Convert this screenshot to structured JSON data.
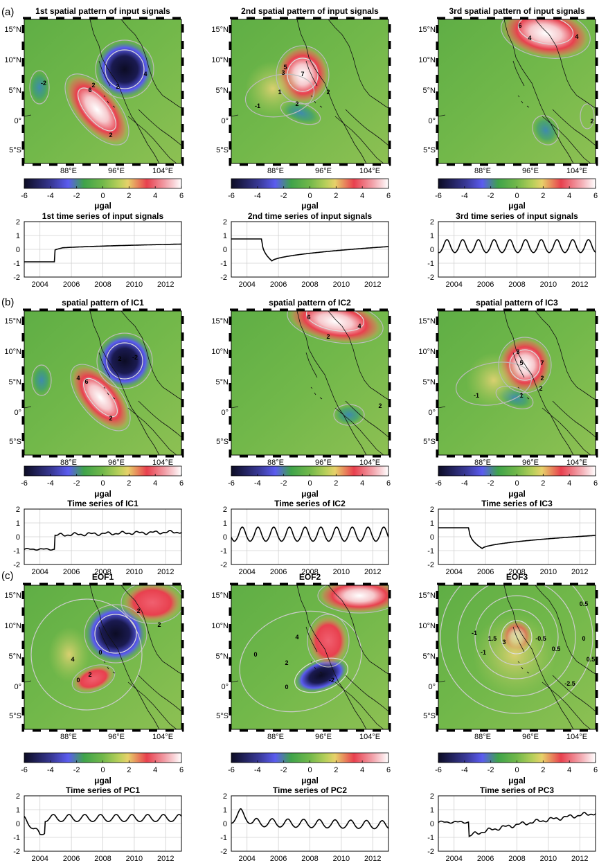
{
  "figure": {
    "sections": [
      "(a)",
      "(b)",
      "(c)"
    ],
    "map_axes": {
      "lat_ticks": [
        "15°N",
        "10°N",
        "5°N",
        "0°",
        "5°S"
      ],
      "lon_ticks": [
        "88°E",
        "96°E",
        "104°E"
      ]
    },
    "colorbar": {
      "ticks": [
        "-6",
        "-4",
        "-2",
        "0",
        "2",
        "4",
        "6"
      ],
      "unit": "μgal",
      "colors": [
        "#0c0c24",
        "#5b5cf0",
        "#3fa34a",
        "#9cc94f",
        "#e7d16a",
        "#e8404e",
        "#ffffff"
      ]
    },
    "ts_axes": {
      "y_ticks": [
        "2",
        "1",
        "0",
        "-1",
        "-2"
      ],
      "x_ticks": [
        "2004",
        "2006",
        "2008",
        "2010",
        "2012"
      ]
    },
    "maps": [
      {
        "title": "1st spatial pattern of input signals",
        "labels": [
          "-2",
          "2",
          "6",
          "2",
          "4",
          "2"
        ]
      },
      {
        "title": "2nd spatial pattern of input signals",
        "labels": [
          "5",
          "3",
          "7",
          "2",
          "1",
          "2",
          "-1"
        ]
      },
      {
        "title": "3rd spatial pattern of input signals",
        "labels": [
          "6",
          "4",
          "4",
          "2"
        ]
      },
      {
        "title": "spatial pattern of IC1",
        "labels": [
          "4",
          "6",
          "2",
          "2",
          "-2"
        ]
      },
      {
        "title": "spatial pattern of IC2",
        "labels": [
          "6",
          "4",
          "2",
          "2"
        ]
      },
      {
        "title": "spatial pattern of IC3",
        "labels": [
          "5",
          "3",
          "7",
          "2",
          "1",
          "2",
          "-1"
        ]
      },
      {
        "title": "EOF1",
        "labels": [
          "2",
          "0",
          "4",
          "2",
          "0",
          "2"
        ]
      },
      {
        "title": "EOF2",
        "labels": [
          "0",
          "2",
          "4",
          "-2",
          "0"
        ]
      },
      {
        "title": "EOF3",
        "labels": [
          "0.5",
          "-1",
          "1.5",
          "3",
          "-0.5",
          "-1",
          "0.5",
          "0",
          "0.5",
          "-2.5"
        ]
      }
    ],
    "series_titles": [
      "1st time series of input signals",
      "2nd time series of input signals",
      "3rd time series of input signals",
      "Time series of IC1",
      "Time series of IC2",
      "Time series of IC3",
      "Time series of PC1",
      "Time series of PC2",
      "Time series of PC3"
    ]
  },
  "chart_data": [
    {
      "type": "line",
      "title": "1st time series of input signals",
      "xlim": [
        2003,
        2013
      ],
      "ylim": [
        -2,
        2
      ],
      "series": [
        {
          "kind": "step",
          "values": {
            "pre": -0.9,
            "jump_at": 2004.95,
            "post_start": 0.05,
            "post_end": 0.38
          }
        }
      ]
    },
    {
      "type": "line",
      "title": "2nd time series of input signals",
      "xlim": [
        2003,
        2013
      ],
      "ylim": [
        -2,
        2
      ],
      "series": [
        {
          "kind": "drop_recover",
          "values": {
            "pre": 0.75,
            "jump_at": 2004.95,
            "min": -0.85,
            "min_at": 2005.6,
            "end": 0.2
          }
        }
      ]
    },
    {
      "type": "line",
      "title": "3rd time series of input signals",
      "xlim": [
        2003,
        2013
      ],
      "ylim": [
        -2,
        2
      ],
      "series": [
        {
          "kind": "seasonal",
          "values": {
            "amp": 0.55,
            "offset": 0.15,
            "phase": 0.3,
            "trend": 0
          }
        }
      ]
    },
    {
      "type": "line",
      "title": "Time series of IC1",
      "xlim": [
        2003,
        2013
      ],
      "ylim": [
        -2,
        2
      ],
      "series": [
        {
          "kind": "step_noisy",
          "values": {
            "pre": -0.9,
            "jump_at": 2004.95,
            "post_start": 0.1,
            "post_end": 0.35,
            "amp": 0.08
          }
        }
      ]
    },
    {
      "type": "line",
      "title": "Time series of IC2",
      "xlim": [
        2003,
        2013
      ],
      "ylim": [
        -2,
        2
      ],
      "series": [
        {
          "kind": "seasonal",
          "values": {
            "amp": 0.6,
            "offset": 0.1,
            "phase": 0.45,
            "trend": 0
          }
        }
      ]
    },
    {
      "type": "line",
      "title": "Time series of IC3",
      "xlim": [
        2003,
        2013
      ],
      "ylim": [
        -2,
        2
      ],
      "series": [
        {
          "kind": "drop_recover",
          "values": {
            "pre": 0.65,
            "jump_at": 2004.95,
            "min": -0.85,
            "min_at": 2005.8,
            "end": 0.1
          }
        }
      ]
    },
    {
      "type": "line",
      "title": "Time series of PC1",
      "xlim": [
        2003,
        2013
      ],
      "ylim": [
        -2,
        2
      ],
      "series": [
        {
          "kind": "seasonal",
          "values": {
            "amp": 0.3,
            "offset": 0.35,
            "phase": 0.6,
            "trend": 0,
            "start_dip": -1.1
          }
        }
      ]
    },
    {
      "type": "line",
      "title": "Time series of PC2",
      "xlim": [
        2003,
        2013
      ],
      "ylim": [
        -2,
        2
      ],
      "series": [
        {
          "kind": "seasonal",
          "values": {
            "amp": 0.35,
            "offset": 0.05,
            "phase": 0.35,
            "trend": -0.02,
            "start_bump": 1.2
          }
        }
      ]
    },
    {
      "type": "line",
      "title": "Time series of PC3",
      "xlim": [
        2003,
        2013
      ],
      "ylim": [
        -2,
        2
      ],
      "series": [
        {
          "kind": "step_noisy",
          "values": {
            "pre": 0.1,
            "jump_at": 2004.95,
            "post_start": -0.95,
            "post_end": 0.75,
            "amp": 0.1
          }
        }
      ]
    }
  ]
}
